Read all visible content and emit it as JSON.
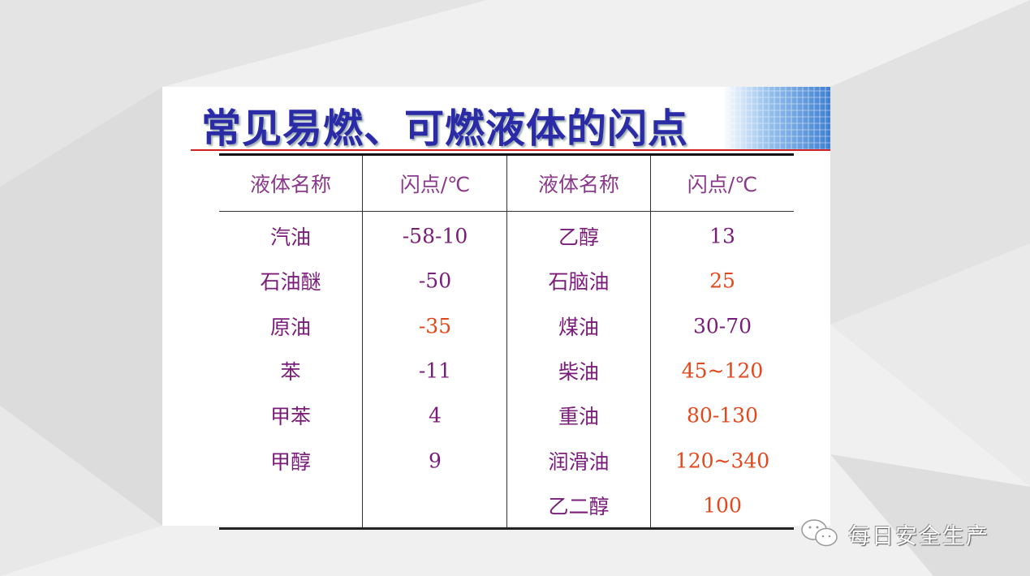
{
  "title": "常见易燃、可燃液体的闪点",
  "table": {
    "headers": [
      "液体名称",
      "闪点/℃",
      "液体名称",
      "闪点/℃"
    ],
    "left_rows": [
      {
        "name": "汽油",
        "flash_point": "-58-10",
        "highlight": false
      },
      {
        "name": "石油醚",
        "flash_point": "-50",
        "highlight": false
      },
      {
        "name": "原油",
        "flash_point": "-35",
        "highlight": true
      },
      {
        "name": "苯",
        "flash_point": "-11",
        "highlight": false
      },
      {
        "name": "甲苯",
        "flash_point": "4",
        "highlight": false
      },
      {
        "name": "甲醇",
        "flash_point": "9",
        "highlight": false
      }
    ],
    "right_rows": [
      {
        "name": "乙醇",
        "flash_point": "13",
        "highlight": false
      },
      {
        "name": "石脑油",
        "flash_point": "25",
        "highlight": true
      },
      {
        "name": "煤油",
        "flash_point": "30-70",
        "highlight": false
      },
      {
        "name": "柴油",
        "flash_point": "45~120",
        "highlight": true
      },
      {
        "name": "重油",
        "flash_point": "80-130",
        "highlight": true
      },
      {
        "name": "润滑油",
        "flash_point": "120~340",
        "highlight": true
      },
      {
        "name": "乙二醇",
        "flash_point": "100",
        "highlight": true
      }
    ]
  },
  "colors": {
    "text": "#7a1c7a",
    "highlight": "#e5471c",
    "title": "#2b2ba8",
    "rule": "#d02020"
  },
  "watermark": {
    "icon": "wechat-icon",
    "text": "每日安全生产"
  }
}
